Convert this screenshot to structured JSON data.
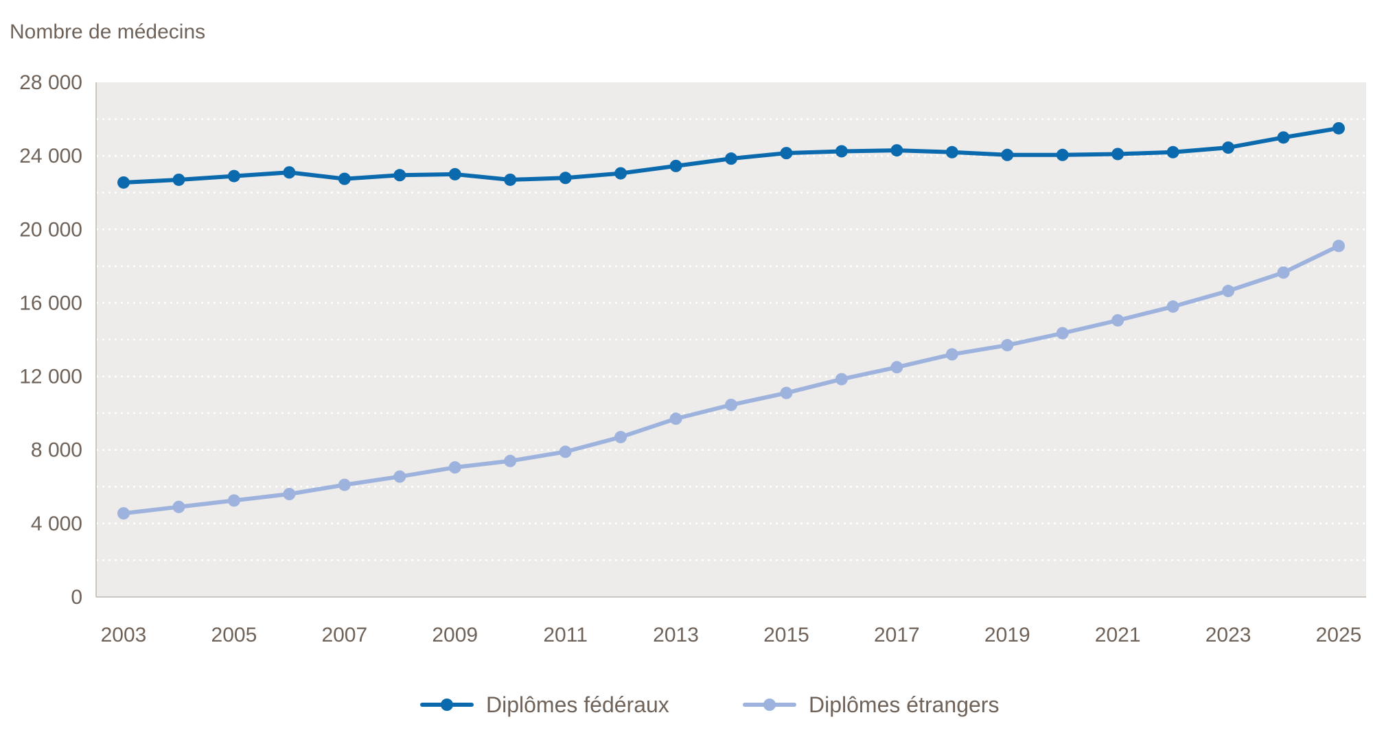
{
  "chart_data": {
    "type": "line",
    "ylabel": "Nombre de médecins",
    "ylim": [
      0,
      28000
    ],
    "yticks": [
      {
        "value": 0,
        "label": "0"
      },
      {
        "value": 4000,
        "label": "4 000"
      },
      {
        "value": 8000,
        "label": "8 000"
      },
      {
        "value": 12000,
        "label": "12 000"
      },
      {
        "value": 16000,
        "label": "16 000"
      },
      {
        "value": 20000,
        "label": "20 000"
      },
      {
        "value": 24000,
        "label": "24 000"
      },
      {
        "value": 28000,
        "label": "28 000"
      }
    ],
    "xticks": [
      "2003",
      "2005",
      "2007",
      "2009",
      "2011",
      "2013",
      "2015",
      "2017",
      "2019",
      "2021",
      "2023",
      "2025"
    ],
    "x": [
      2003,
      2004,
      2005,
      2006,
      2007,
      2008,
      2009,
      2010,
      2011,
      2012,
      2013,
      2014,
      2015,
      2016,
      2017,
      2018,
      2019,
      2020,
      2021,
      2022,
      2023,
      2024,
      2025
    ],
    "grid": "dotted horizontal",
    "legend_position": "bottom",
    "series": [
      {
        "name": "Diplômes fédéraux",
        "color": "#0a6aad",
        "values": [
          22550,
          22700,
          22900,
          23100,
          22750,
          22950,
          23000,
          22700,
          22800,
          23050,
          23450,
          23850,
          24150,
          24250,
          24300,
          24200,
          24050,
          24050,
          24100,
          24200,
          24450,
          25000,
          25500
        ]
      },
      {
        "name": "Diplômes étrangers",
        "color": "#9db3dd",
        "values": [
          4550,
          4900,
          5250,
          5600,
          6100,
          6550,
          7050,
          7400,
          7900,
          8700,
          9700,
          10450,
          11100,
          11850,
          12500,
          13200,
          13700,
          14350,
          15050,
          15800,
          16650,
          17650,
          19100
        ]
      }
    ]
  }
}
